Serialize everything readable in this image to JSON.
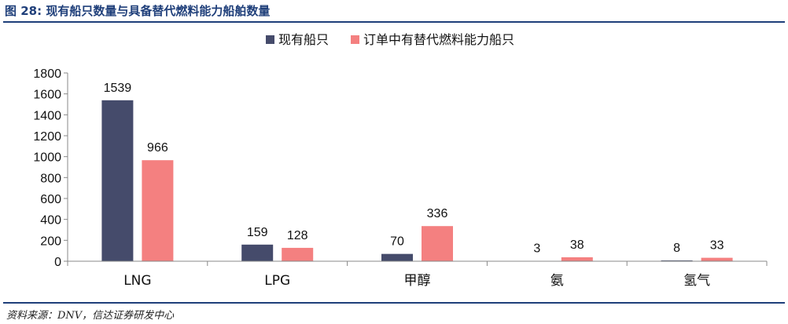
{
  "figure": {
    "title": "图 28:  现有船只数量与具备替代燃料能力船舶数量",
    "source": "资料来源：DNV，信达证券研发中心"
  },
  "chart_data": {
    "type": "bar",
    "categories": [
      "LNG",
      "LPG",
      "甲醇",
      "氨",
      "氢气"
    ],
    "series": [
      {
        "name": "现有船只",
        "values": [
          1539,
          159,
          70,
          3,
          8
        ],
        "color": "#454b6b"
      },
      {
        "name": "订单中有替代燃料能力船只",
        "values": [
          966,
          128,
          336,
          38,
          33
        ],
        "color": "#f48080"
      }
    ],
    "ylim": [
      0,
      1800
    ],
    "yticks": [
      0,
      200,
      400,
      600,
      800,
      1000,
      1200,
      1400,
      1600,
      1800
    ],
    "legend_position": "top-center",
    "grid": false,
    "data_labels": true
  }
}
